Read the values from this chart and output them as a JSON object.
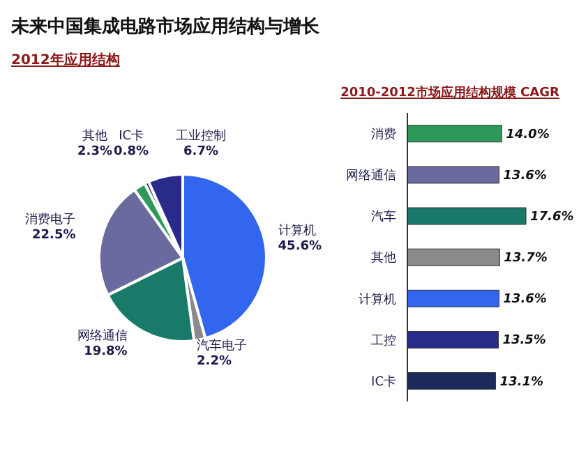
{
  "chart_data": [
    {
      "type": "pie",
      "title": "未来中国集成电路市场应用结构与增长",
      "subtitle": "2012年应用结构",
      "categories": [
        "计算机",
        "汽车电子",
        "网络通信",
        "消费电子",
        "其他",
        "IC卡",
        "工业控制"
      ],
      "values": [
        45.6,
        2.2,
        19.8,
        22.5,
        2.3,
        0.8,
        6.7
      ],
      "value_labels": [
        "45.6%",
        "2.2%",
        "19.8%",
        "22.5%",
        "2.3%",
        "0.8%",
        "6.7%"
      ],
      "colors": [
        "#3366ee",
        "#8a8a8a",
        "#1a7a6a",
        "#6a6a9e",
        "#2e9a5a",
        "#1a2a5a",
        "#2a2a8a"
      ]
    },
    {
      "type": "bar",
      "orientation": "horizontal",
      "title": "2010-2012市场应用结构规模 CAGR",
      "categories": [
        "消费",
        "网络通信",
        "汽车",
        "其他",
        "计算机",
        "工控",
        "IC卡"
      ],
      "values": [
        14.0,
        13.6,
        17.6,
        13.7,
        13.6,
        13.5,
        13.1
      ],
      "value_labels": [
        "14.0%",
        "13.6%",
        "17.6%",
        "13.7%",
        "13.6%",
        "13.5%",
        "13.1%"
      ],
      "colors": [
        "#2e9a5a",
        "#6a6a9e",
        "#1a7a6a",
        "#8a8a8a",
        "#3366ee",
        "#2a2a8a",
        "#1a2a5a"
      ]
    }
  ]
}
